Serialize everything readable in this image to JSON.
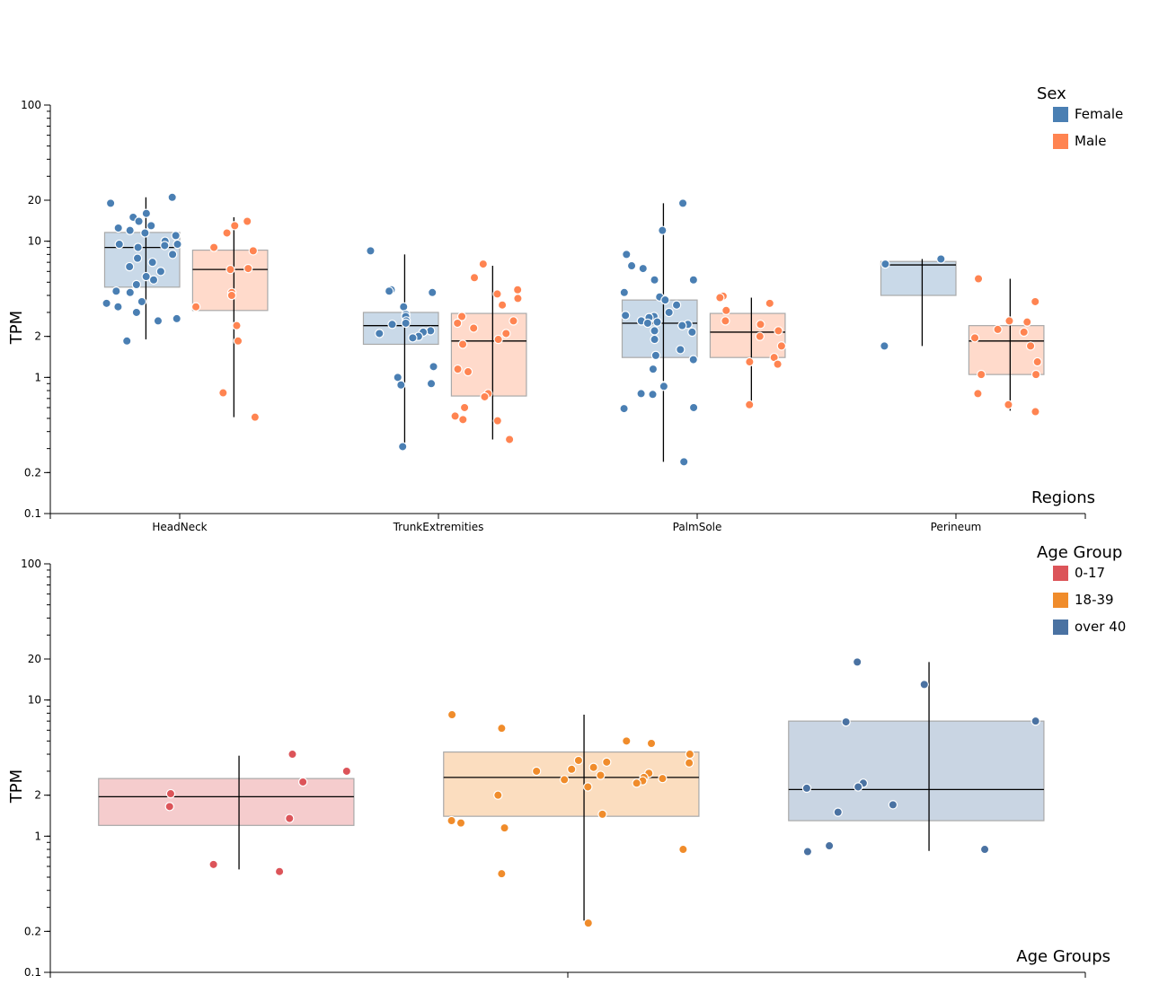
{
  "chart_data": [
    {
      "type": "box",
      "ylabel": "TPM",
      "xlabel": "Regions",
      "yscale": "log",
      "ylim": [
        0.1,
        100
      ],
      "yticks": [
        {
          "value": 0.1,
          "label": "0.1"
        },
        {
          "value": 0.2,
          "label": "0.2"
        },
        {
          "value": 1,
          "label": "1"
        },
        {
          "value": 2,
          "label": "2"
        },
        {
          "value": 10,
          "label": "10"
        },
        {
          "value": 20,
          "label": "20"
        },
        {
          "value": 100,
          "label": "100"
        }
      ],
      "legend_title": "Sex",
      "legend": [
        {
          "label": "Female",
          "color": "#4a7fb3"
        },
        {
          "label": "Male",
          "color": "#ff8451"
        }
      ],
      "categories": [
        "HeadNeck",
        "TrunkExtremities",
        "PalmSole",
        "Perineum"
      ],
      "groups": [
        {
          "category": "HeadNeck",
          "series": "Female",
          "color": "#4a7fb3",
          "q1": 4.6,
          "median": 9.0,
          "q3": 11.6,
          "whisker_low": 1.9,
          "whisker_high": 21.0,
          "points": [
            21.0,
            19.0,
            16.0,
            15.0,
            14.0,
            13.0,
            12.5,
            12.0,
            11.5,
            11.0,
            10.0,
            9.5,
            9.5,
            9.3,
            9.0,
            8.0,
            7.5,
            7.0,
            6.5,
            6.0,
            5.5,
            5.2,
            4.8,
            4.3,
            4.2,
            3.6,
            3.5,
            3.3,
            3.0,
            2.7,
            2.6,
            1.85
          ]
        },
        {
          "category": "HeadNeck",
          "series": "Male",
          "color": "#ff8451",
          "q1": 3.1,
          "median": 6.2,
          "q3": 8.6,
          "whisker_low": 0.51,
          "whisker_high": 15.0,
          "points": [
            14.0,
            13.0,
            11.5,
            9.0,
            8.5,
            6.3,
            6.2,
            4.2,
            4.0,
            3.3,
            2.4,
            1.85,
            0.77,
            0.51
          ]
        },
        {
          "category": "TrunkExtremities",
          "series": "Female",
          "color": "#4a7fb3",
          "q1": 1.75,
          "median": 2.4,
          "q3": 3.0,
          "whisker_low": 0.33,
          "whisker_high": 8.0,
          "points": [
            8.5,
            4.4,
            4.3,
            4.2,
            3.3,
            2.9,
            2.8,
            2.6,
            2.5,
            2.45,
            2.2,
            2.15,
            2.1,
            2.0,
            1.95,
            1.2,
            1.0,
            0.9,
            0.88,
            0.31
          ]
        },
        {
          "category": "TrunkExtremities",
          "series": "Male",
          "color": "#ff8451",
          "q1": 0.73,
          "median": 1.85,
          "q3": 2.95,
          "whisker_low": 0.35,
          "whisker_high": 6.6,
          "points": [
            6.8,
            5.4,
            4.4,
            4.1,
            3.8,
            3.4,
            2.8,
            2.6,
            2.5,
            2.3,
            2.1,
            1.9,
            1.75,
            1.15,
            1.1,
            0.76,
            0.72,
            0.6,
            0.52,
            0.49,
            0.48,
            0.35
          ]
        },
        {
          "category": "PalmSole",
          "series": "Female",
          "color": "#4a7fb3",
          "q1": 1.4,
          "median": 2.5,
          "q3": 3.7,
          "whisker_low": 0.24,
          "whisker_high": 19.0,
          "points": [
            19.0,
            12.0,
            8.0,
            6.6,
            6.3,
            5.2,
            5.2,
            4.2,
            3.9,
            3.7,
            3.4,
            3.0,
            2.85,
            2.8,
            2.75,
            2.6,
            2.55,
            2.5,
            2.45,
            2.4,
            2.2,
            2.15,
            1.9,
            1.6,
            1.45,
            1.35,
            1.15,
            0.87,
            0.86,
            0.76,
            0.75,
            0.6,
            0.59,
            0.24
          ]
        },
        {
          "category": "PalmSole",
          "series": "Male",
          "color": "#ff8451",
          "q1": 1.4,
          "median": 2.15,
          "q3": 2.95,
          "whisker_low": 0.63,
          "whisker_high": 3.85,
          "points": [
            3.95,
            3.85,
            3.5,
            3.1,
            2.6,
            2.45,
            2.2,
            2.0,
            1.7,
            1.4,
            1.3,
            1.25,
            0.63
          ]
        },
        {
          "category": "Perineum",
          "series": "Female",
          "color": "#4a7fb3",
          "q1": 4.0,
          "median": 6.7,
          "q3": 7.1,
          "whisker_low": 1.7,
          "whisker_high": 7.4,
          "points": [
            7.4,
            6.8,
            1.7
          ]
        },
        {
          "category": "Perineum",
          "series": "Male",
          "color": "#ff8451",
          "q1": 1.05,
          "median": 1.85,
          "q3": 2.4,
          "whisker_low": 0.57,
          "whisker_high": 5.3,
          "points": [
            5.3,
            3.6,
            2.6,
            2.55,
            2.25,
            2.15,
            1.95,
            1.7,
            1.3,
            1.05,
            1.05,
            0.76,
            0.63,
            0.56
          ]
        }
      ]
    },
    {
      "type": "box",
      "ylabel": "TPM",
      "xlabel": "Age Groups",
      "yscale": "log",
      "ylim": [
        0.1,
        100
      ],
      "yticks": [
        {
          "value": 0.1,
          "label": "0.1"
        },
        {
          "value": 0.2,
          "label": "0.2"
        },
        {
          "value": 1,
          "label": "1"
        },
        {
          "value": 2,
          "label": "2"
        },
        {
          "value": 10,
          "label": "10"
        },
        {
          "value": 20,
          "label": "20"
        },
        {
          "value": 100,
          "label": "100"
        }
      ],
      "legend_title": "Age Group",
      "legend": [
        {
          "label": "0-17",
          "color": "#dc5459"
        },
        {
          "label": "18-39",
          "color": "#f08c2b"
        },
        {
          "label": "over 40",
          "color": "#4a72a2"
        }
      ],
      "categories": [
        ""
      ],
      "groups": [
        {
          "series": "0-17",
          "color": "#dc5459",
          "q1": 1.2,
          "median": 1.95,
          "q3": 2.65,
          "whisker_low": 0.57,
          "whisker_high": 3.9,
          "points": [
            4.0,
            3.0,
            2.5,
            2.05,
            1.65,
            1.35,
            0.62,
            0.55
          ]
        },
        {
          "series": "18-39",
          "color": "#f08c2b",
          "q1": 1.4,
          "median": 2.7,
          "q3": 4.15,
          "whisker_low": 0.24,
          "whisker_high": 7.8,
          "points": [
            7.8,
            6.2,
            5.0,
            4.8,
            4.0,
            3.6,
            3.5,
            3.45,
            3.2,
            3.1,
            3.0,
            2.9,
            2.8,
            2.7,
            2.65,
            2.6,
            2.55,
            2.45,
            2.3,
            2.0,
            1.45,
            1.3,
            1.25,
            1.15,
            0.8,
            0.53,
            0.23
          ]
        },
        {
          "series": "over 40",
          "color": "#4a72a2",
          "q1": 1.3,
          "median": 2.2,
          "q3": 7.0,
          "whisker_low": 0.78,
          "whisker_high": 19.0,
          "points": [
            19.0,
            13.0,
            7.0,
            6.9,
            2.45,
            2.3,
            2.25,
            1.7,
            1.5,
            0.85,
            0.8,
            0.77
          ]
        }
      ]
    }
  ]
}
